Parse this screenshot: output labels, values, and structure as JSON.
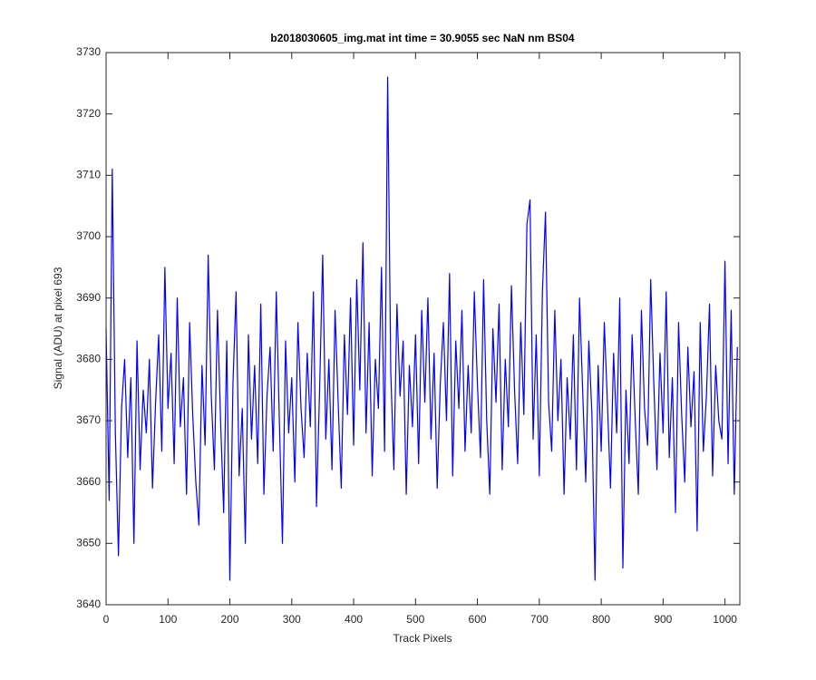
{
  "chart_data": {
    "type": "line",
    "title": "b2018030605_img.mat int time = 30.9055 sec  NaN nm BS04",
    "x_label": "Track Pixels",
    "y_label": "Signal (ADU) at pixel 693",
    "xlim": [
      0,
      1024
    ],
    "ylim": [
      3640,
      3730
    ],
    "xticks": [
      0,
      100,
      200,
      300,
      400,
      500,
      600,
      700,
      800,
      900,
      1000
    ],
    "yticks": [
      3640,
      3650,
      3660,
      3670,
      3680,
      3690,
      3700,
      3710,
      3720,
      3730
    ],
    "grid": false,
    "x": [
      0,
      5,
      10,
      15,
      20,
      25,
      30,
      35,
      40,
      45,
      50,
      55,
      60,
      65,
      70,
      75,
      80,
      85,
      90,
      95,
      100,
      105,
      110,
      115,
      120,
      125,
      130,
      135,
      140,
      145,
      150,
      155,
      160,
      165,
      170,
      175,
      180,
      185,
      190,
      195,
      200,
      205,
      210,
      215,
      220,
      225,
      230,
      235,
      240,
      245,
      250,
      255,
      260,
      265,
      270,
      275,
      280,
      285,
      290,
      295,
      300,
      305,
      310,
      315,
      320,
      325,
      330,
      335,
      340,
      345,
      350,
      355,
      360,
      365,
      370,
      375,
      380,
      385,
      390,
      395,
      400,
      405,
      410,
      415,
      420,
      425,
      430,
      435,
      440,
      445,
      450,
      455,
      460,
      465,
      470,
      475,
      480,
      485,
      490,
      495,
      500,
      505,
      510,
      515,
      520,
      525,
      530,
      535,
      540,
      545,
      550,
      555,
      560,
      565,
      570,
      575,
      580,
      585,
      590,
      595,
      600,
      605,
      610,
      615,
      620,
      625,
      630,
      635,
      640,
      645,
      650,
      655,
      660,
      665,
      670,
      675,
      680,
      685,
      690,
      695,
      700,
      705,
      710,
      715,
      720,
      725,
      730,
      735,
      740,
      745,
      750,
      755,
      760,
      765,
      770,
      775,
      780,
      785,
      790,
      795,
      800,
      805,
      810,
      815,
      820,
      825,
      830,
      835,
      840,
      845,
      850,
      855,
      860,
      865,
      870,
      875,
      880,
      885,
      890,
      895,
      900,
      905,
      910,
      915,
      920,
      925,
      930,
      935,
      940,
      945,
      950,
      955,
      960,
      965,
      970,
      975,
      980,
      985,
      990,
      995,
      1000,
      1005,
      1010,
      1015,
      1020
    ],
    "series": [
      {
        "name": "signal",
        "color": "#0000ff",
        "values": [
          3685,
          3657,
          3711,
          3668,
          3648,
          3672,
          3680,
          3664,
          3677,
          3650,
          3683,
          3662,
          3675,
          3668,
          3680,
          3659,
          3673,
          3684,
          3665,
          3695,
          3672,
          3681,
          3663,
          3690,
          3669,
          3677,
          3658,
          3686,
          3671,
          3660,
          3653,
          3679,
          3666,
          3697,
          3674,
          3662,
          3688,
          3670,
          3655,
          3683,
          3644,
          3676,
          3691,
          3661,
          3672,
          3650,
          3684,
          3667,
          3679,
          3663,
          3689,
          3658,
          3674,
          3682,
          3665,
          3691,
          3670,
          3650,
          3683,
          3668,
          3677,
          3660,
          3686,
          3672,
          3664,
          3681,
          3669,
          3691,
          3656,
          3675,
          3697,
          3667,
          3680,
          3662,
          3688,
          3673,
          3659,
          3684,
          3671,
          3690,
          3666,
          3693,
          3675,
          3699,
          3668,
          3686,
          3661,
          3680,
          3672,
          3695,
          3665,
          3726,
          3678,
          3662,
          3689,
          3674,
          3683,
          3658,
          3679,
          3669,
          3684,
          3663,
          3688,
          3673,
          3690,
          3667,
          3681,
          3659,
          3676,
          3686,
          3670,
          3694,
          3661,
          3683,
          3672,
          3688,
          3665,
          3679,
          3668,
          3691,
          3676,
          3664,
          3693,
          3670,
          3658,
          3685,
          3673,
          3689,
          3662,
          3680,
          3669,
          3692,
          3675,
          3663,
          3686,
          3671,
          3702,
          3706,
          3667,
          3684,
          3661,
          3691,
          3704,
          3673,
          3665,
          3688,
          3670,
          3680,
          3658,
          3677,
          3667,
          3684,
          3662,
          3690,
          3675,
          3660,
          3683,
          3671,
          3644,
          3679,
          3665,
          3686,
          3673,
          3659,
          3681,
          3668,
          3690,
          3646,
          3675,
          3663,
          3684,
          3670,
          3658,
          3688,
          3672,
          3666,
          3693,
          3676,
          3662,
          3681,
          3668,
          3691,
          3664,
          3677,
          3655,
          3686,
          3671,
          3660,
          3682,
          3669,
          3678,
          3652,
          3686,
          3665,
          3674,
          3689,
          3661,
          3679,
          3670,
          3667,
          3696,
          3663,
          3688,
          3658,
          3682
        ]
      }
    ]
  }
}
